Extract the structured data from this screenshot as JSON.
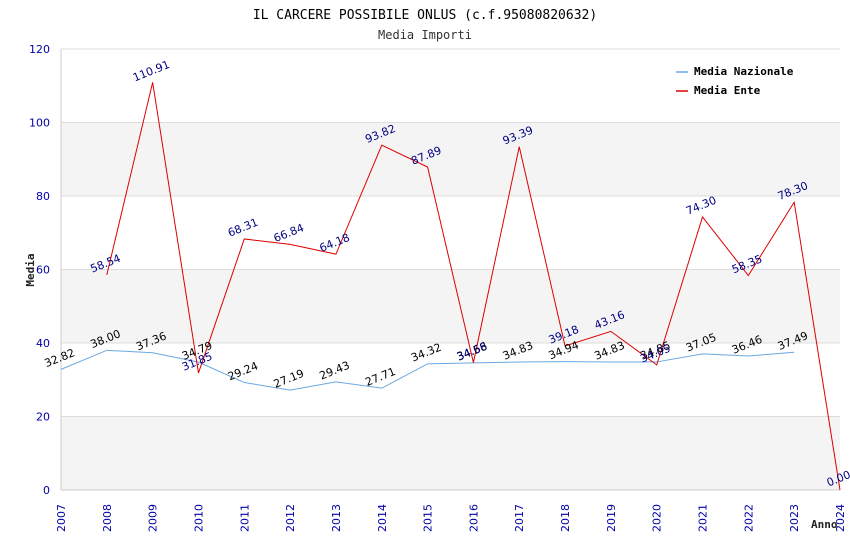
{
  "chart_data": {
    "type": "line",
    "title": "IL CARCERE POSSIBILE ONLUS (c.f.95080820632)",
    "subtitle": "Media Importi",
    "ylabel": "Media",
    "xlabel": "Anno",
    "ylim": [
      0,
      120
    ],
    "yticks": [
      0,
      20,
      40,
      60,
      80,
      100,
      120
    ],
    "x": [
      "2007",
      "2008",
      "2009",
      "2010",
      "2011",
      "2012",
      "2013",
      "2014",
      "2015",
      "2016",
      "2017",
      "2018",
      "2019",
      "2020",
      "2021",
      "2022",
      "2023",
      "2024"
    ],
    "legend_position": "top-right",
    "grid": true,
    "series": [
      {
        "name": "Media Nazionale",
        "color": "#6aa8e0",
        "values": [
          32.82,
          38.0,
          37.36,
          34.79,
          29.24,
          27.19,
          29.43,
          27.71,
          34.32,
          34.58,
          34.83,
          34.94,
          34.83,
          34.85,
          37.05,
          36.46,
          37.49,
          null
        ],
        "labels": [
          "32.82",
          "38.00",
          "37.36",
          "34.79",
          "29.24",
          "27.19",
          "29.43",
          "27.71",
          "34.32",
          "34.58",
          "34.83",
          "34.94",
          "34.83",
          "34.85",
          "37.05",
          "36.46",
          "37.49",
          ""
        ]
      },
      {
        "name": "Media Ente",
        "color": "#dd0000",
        "values": [
          null,
          58.54,
          110.91,
          31.85,
          68.31,
          66.84,
          64.18,
          93.82,
          87.89,
          34.66,
          93.39,
          39.18,
          43.16,
          34.05,
          74.3,
          58.35,
          78.3,
          0.0
        ],
        "labels": [
          "",
          "58.54",
          "110.91",
          "31.85",
          "68.31",
          "66.84",
          "64.18",
          "93.82",
          "87.89",
          "34.66",
          "93.39",
          "39.18",
          "43.16",
          "34.05",
          "74.30",
          "58.35",
          "78.30",
          "0.00"
        ]
      }
    ]
  }
}
